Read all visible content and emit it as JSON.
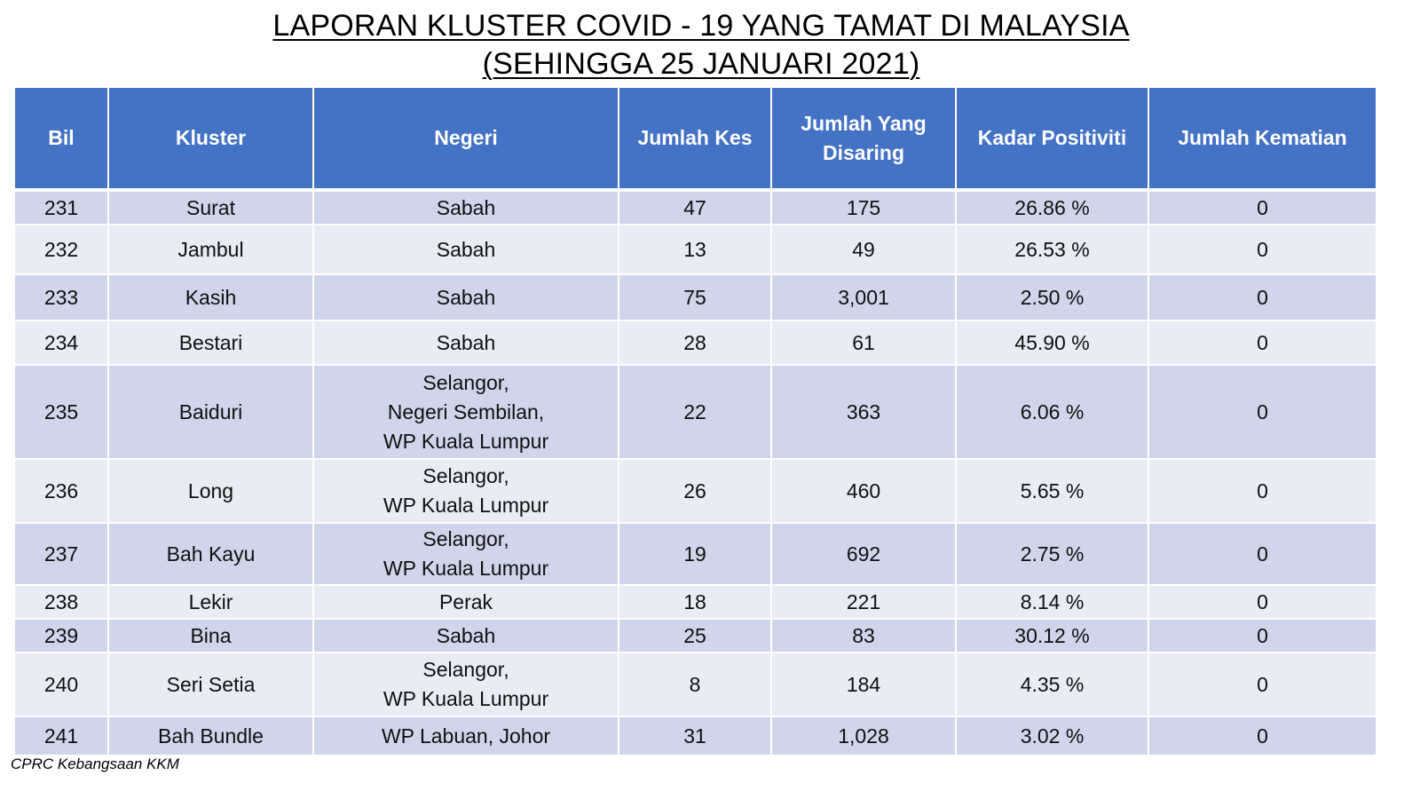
{
  "title": {
    "line1": "LAPORAN KLUSTER COVID - 19 YANG TAMAT DI MALAYSIA",
    "line2": "(SEHINGGA 25 JANUARI 2021)"
  },
  "table": {
    "headers": [
      "Bil",
      "Kluster",
      "Negeri",
      "Jumlah Kes",
      "Jumlah Yang Disaring",
      "Kadar Positiviti",
      "Jumlah Kematian"
    ],
    "rows": [
      {
        "bil": "231",
        "kluster": "Surat",
        "negeri": [
          "Sabah"
        ],
        "kes": "47",
        "disaring": "175",
        "positiviti": "26.86 %",
        "kematian": "0"
      },
      {
        "bil": "232",
        "kluster": "Jambul",
        "negeri": [
          "Sabah"
        ],
        "kes": "13",
        "disaring": "49",
        "positiviti": "26.53 %",
        "kematian": "0"
      },
      {
        "bil": "233",
        "kluster": "Kasih",
        "negeri": [
          "Sabah"
        ],
        "kes": "75",
        "disaring": "3,001",
        "positiviti": "2.50 %",
        "kematian": "0"
      },
      {
        "bil": "234",
        "kluster": "Bestari",
        "negeri": [
          "Sabah"
        ],
        "kes": "28",
        "disaring": "61",
        "positiviti": "45.90 %",
        "kematian": "0"
      },
      {
        "bil": "235",
        "kluster": "Baiduri",
        "negeri": [
          "Selangor,",
          "Negeri Sembilan,",
          "WP Kuala Lumpur"
        ],
        "kes": "22",
        "disaring": "363",
        "positiviti": "6.06 %",
        "kematian": "0"
      },
      {
        "bil": "236",
        "kluster": "Long",
        "negeri": [
          "Selangor,",
          "WP Kuala Lumpur"
        ],
        "kes": "26",
        "disaring": "460",
        "positiviti": "5.65 %",
        "kematian": "0"
      },
      {
        "bil": "237",
        "kluster": "Bah Kayu",
        "negeri": [
          "Selangor,",
          "WP Kuala Lumpur"
        ],
        "kes": "19",
        "disaring": "692",
        "positiviti": "2.75 %",
        "kematian": "0"
      },
      {
        "bil": "238",
        "kluster": "Lekir",
        "negeri": [
          "Perak"
        ],
        "kes": "18",
        "disaring": "221",
        "positiviti": "8.14 %",
        "kematian": "0"
      },
      {
        "bil": "239",
        "kluster": "Bina",
        "negeri": [
          "Sabah"
        ],
        "kes": "25",
        "disaring": "83",
        "positiviti": "30.12 %",
        "kematian": "0"
      },
      {
        "bil": "240",
        "kluster": "Seri Setia",
        "negeri": [
          "Selangor,",
          "WP Kuala Lumpur"
        ],
        "kes": "8",
        "disaring": "184",
        "positiviti": "4.35 %",
        "kematian": "0"
      },
      {
        "bil": "241",
        "kluster": "Bah Bundle",
        "negeri": [
          "WP Labuan, Johor"
        ],
        "kes": "31",
        "disaring": "1,028",
        "positiviti": "3.02 %",
        "kematian": "0"
      }
    ]
  },
  "footer": "CPRC Kebangsaan KKM"
}
